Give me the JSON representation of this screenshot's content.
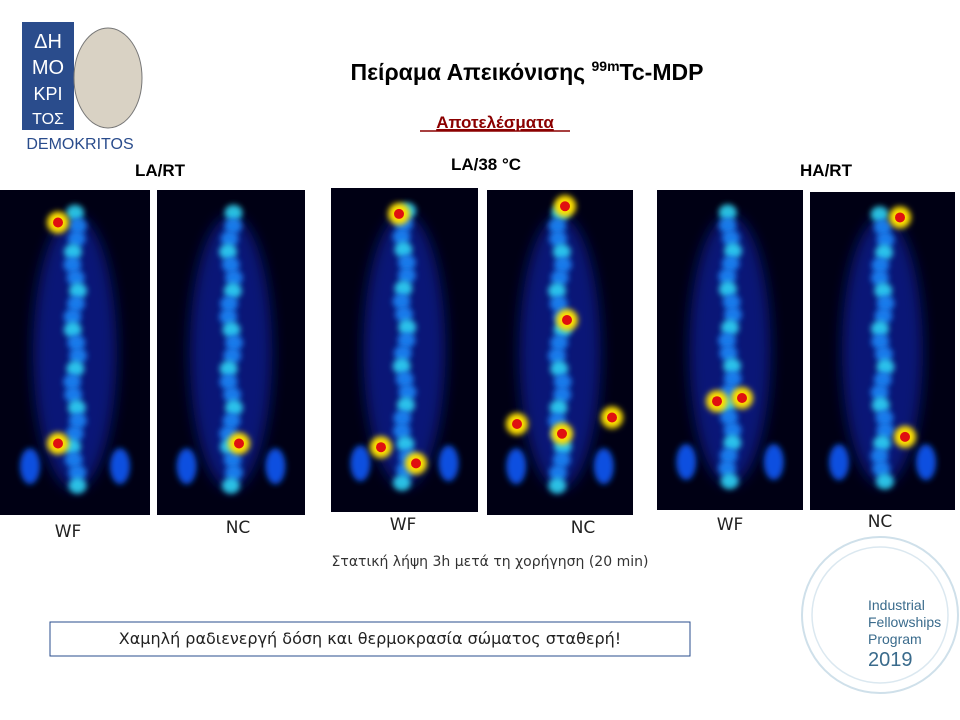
{
  "logo": {
    "letters": [
      "ΔΗ",
      "ΜΟ",
      "ΚΡΙ",
      "ΤΟΣ"
    ],
    "name": "DEMOKRITOS"
  },
  "header": {
    "title": "Πείραμα Απεικόνισης ",
    "isotope": "99m",
    "tracer": "Tc-MDP",
    "subtitle": "Αποτελέσματα"
  },
  "groups": [
    {
      "label": "LA/RT"
    },
    {
      "label": "LA/38 °C"
    },
    {
      "label": "HA/RT"
    }
  ],
  "images": [
    {
      "label": "WF"
    },
    {
      "label": "NC"
    },
    {
      "label": "WF"
    },
    {
      "label": "NC"
    },
    {
      "label": "WF"
    },
    {
      "label": "NC"
    }
  ],
  "caption": "Στατική λήψη 3h μετά τη χορήγηση (20 min)",
  "note": "Χαμηλή ραδιενεργή δόση και θερμοκρασία σώματος  σταθερή!",
  "program_logo": {
    "lines": [
      "Industrial",
      "Fellowships",
      "Program",
      "2019"
    ]
  }
}
